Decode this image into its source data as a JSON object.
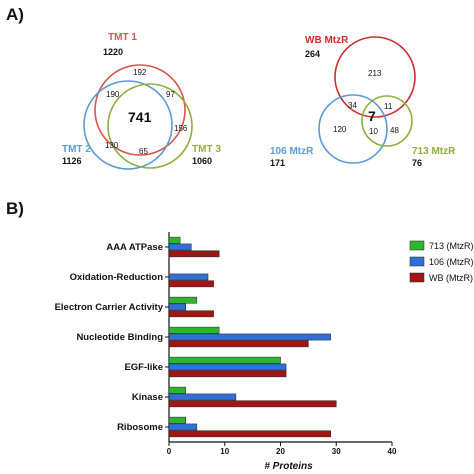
{
  "panel_a": {
    "label": "A)",
    "venn_left": {
      "sets": [
        {
          "name": "TMT 1",
          "total": "1220",
          "color": "#d9534f"
        },
        {
          "name": "TMT 2",
          "total": "1126",
          "color": "#5b9bd5"
        },
        {
          "name": "TMT 3",
          "total": "1060",
          "color": "#8fae3c"
        }
      ],
      "regions": {
        "only_1": "192",
        "one_two": "190",
        "one_three": "97",
        "all": "741",
        "only_2": "130",
        "only_3": "156",
        "two_three": "65"
      }
    },
    "venn_right": {
      "sets": [
        {
          "name": "WB MtzR",
          "total": "264",
          "color": "#c9302c"
        },
        {
          "name": "106 MtzR",
          "total": "171",
          "color": "#5b9bd5"
        },
        {
          "name": "713 MtzR",
          "total": "76",
          "color": "#8fae3c"
        }
      ],
      "regions": {
        "only_wb": "213",
        "wb_106": "34",
        "wb_713": "11",
        "all": "7",
        "only_106": "120",
        "a106_713": "10",
        "only_713": "48"
      }
    }
  },
  "panel_b": {
    "label": "B)",
    "colors": {
      "s713": "#2db52d",
      "s106": "#2f6fd6",
      "wb": "#a31515"
    }
  },
  "chart_data": {
    "type": "bar",
    "orientation": "horizontal",
    "categories": [
      "AAA ATPase",
      "Oxidation-Reduction",
      "Electron Carrier Activity",
      "Nucleotide Binding",
      "EGF-like",
      "Kinase",
      "Ribosome"
    ],
    "series": [
      {
        "name": "713 (MtzR)",
        "values": [
          2,
          0,
          5,
          9,
          20,
          3,
          3
        ]
      },
      {
        "name": "106 (MtzR)",
        "values": [
          4,
          7,
          3,
          29,
          21,
          12,
          5
        ]
      },
      {
        "name": "WB (MtzR)",
        "values": [
          9,
          8,
          8,
          25,
          21,
          30,
          29
        ]
      }
    ],
    "xlabel": "# Proteins",
    "xlim": [
      0,
      40
    ],
    "xticks": [
      "0",
      "10",
      "20",
      "30",
      "40"
    ],
    "legend_position": "right"
  }
}
